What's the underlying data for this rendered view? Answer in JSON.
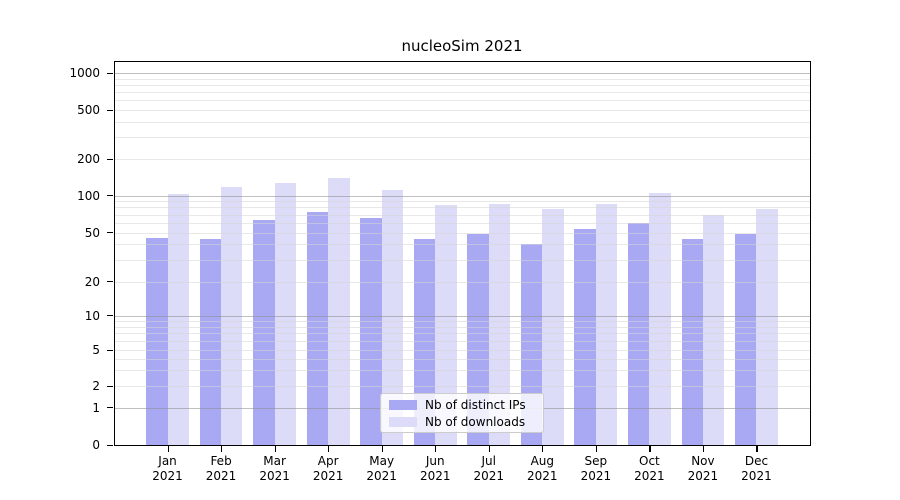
{
  "title": "nucleoSim 2021",
  "chart_data": {
    "type": "bar",
    "title": "nucleoSim 2021",
    "yscale": "symlog (logarithmic above 1, linear segment 0-1)",
    "ylim": [
      0,
      1000
    ],
    "y_ticks": [
      0,
      1,
      2,
      5,
      10,
      20,
      50,
      100,
      200,
      500,
      1000
    ],
    "grid": true,
    "categories": [
      "Jan",
      "Feb",
      "Mar",
      "Apr",
      "May",
      "Jun",
      "Jul",
      "Aug",
      "Sep",
      "Oct",
      "Nov",
      "Dec"
    ],
    "year": "2021",
    "legend": {
      "position": "inside lower-center",
      "entries": [
        "Nb of distinct IPs",
        "Nb of downloads"
      ]
    },
    "series": [
      {
        "name": "Nb of distinct IPs",
        "color": "#a9a9f3",
        "values": [
          45,
          44,
          63,
          73,
          66,
          44,
          49,
          40,
          53,
          60,
          44,
          49
        ]
      },
      {
        "name": "Nb of downloads",
        "color": "#dcdcf8",
        "values": [
          102,
          118,
          128,
          140,
          110,
          84,
          85,
          77,
          85,
          105,
          70,
          78
        ]
      }
    ]
  },
  "colors": {
    "grid_major": "#c0c0c0",
    "grid_minor": "#ececec",
    "axis": "#000000",
    "legend_border": "#cccccc"
  }
}
